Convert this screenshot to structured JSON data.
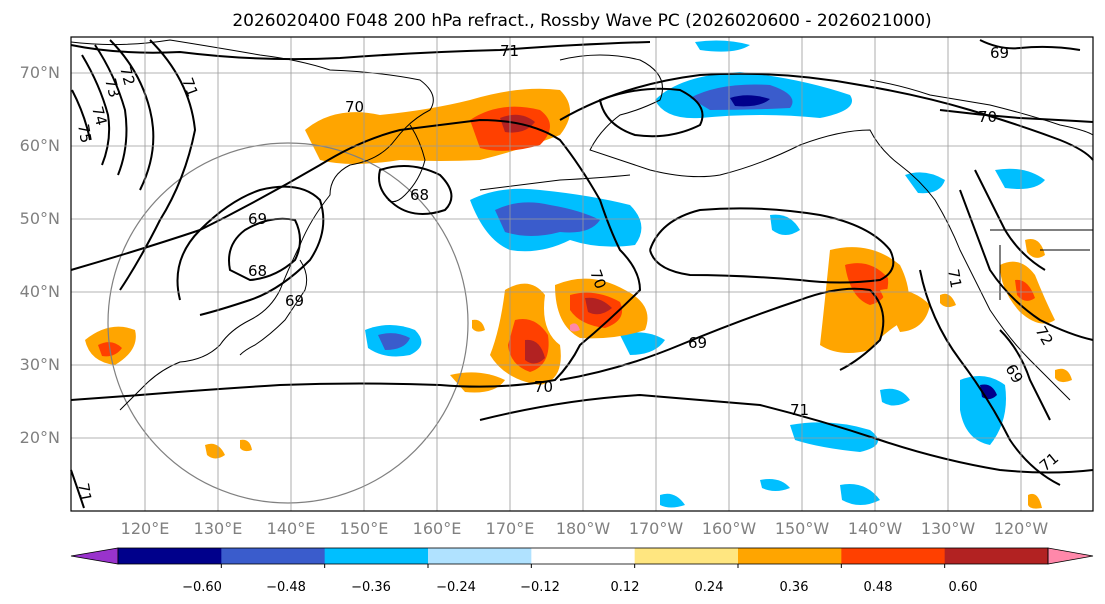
{
  "title": "2026020400 F048 200 hPa refract., Rossby Wave PC (2026020600 - 2026021000)",
  "latitude_labels": [
    "70°N",
    "60°N",
    "50°N",
    "40°N",
    "30°N",
    "20°N"
  ],
  "longitude_labels": [
    "120°E",
    "130°E",
    "140°E",
    "150°E",
    "160°E",
    "170°E",
    "180°W",
    "170°W",
    "160°W",
    "150°W",
    "140°W",
    "130°W",
    "120°W"
  ],
  "contour_labels": [
    "71",
    "72",
    "73",
    "74",
    "75",
    "70",
    "69",
    "68",
    "68",
    "69",
    "70",
    "69",
    "70",
    "71",
    "71",
    "71",
    "72",
    "69",
    "71",
    "71",
    "69",
    "70"
  ],
  "colorbar": {
    "ticks": [
      "−0.60",
      "−0.48",
      "−0.36",
      "−0.24",
      "−0.12",
      "0.12",
      "0.24",
      "0.36",
      "0.48",
      "0.60"
    ],
    "colors": [
      "#9933cc",
      "#00008b",
      "#3a5ccc",
      "#00bfff",
      "#b0e2ff",
      "#ffffff",
      "#ffe680",
      "#ffa500",
      "#ff4000",
      "#b22222",
      "#ff88aa"
    ]
  },
  "map_colors": {
    "neg1": "#00bfff",
    "neg2": "#3a5ccc",
    "neg3": "#00008b",
    "pos1": "#ffe680",
    "pos2": "#ffa500",
    "pos3": "#ff4000",
    "pos4": "#b22222",
    "pos5": "#ff88aa"
  }
}
